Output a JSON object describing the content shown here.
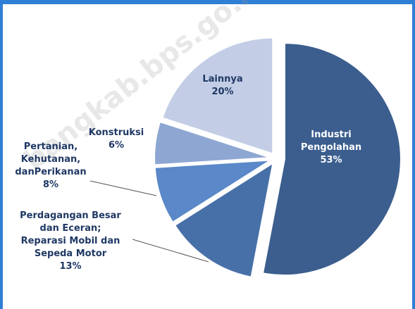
{
  "chart_data": {
    "type": "pie",
    "categories": [
      "Industri Pengolahan",
      "Perdagangan Besar dan Eceran; Reparasi Mobil dan Sepeda Motor",
      "Pertanian, Kehutanan, danPerikanan",
      "Konstruksi",
      "Lainnya"
    ],
    "values": [
      53,
      13,
      8,
      6,
      20
    ],
    "value_labels": [
      "53%",
      "13%",
      "8%",
      "6%",
      "20%"
    ],
    "colors": [
      "#3b5e8e",
      "#4870a8",
      "#5a88c8",
      "#8ea7d2",
      "#c3cee6"
    ],
    "watermark": "bangkab.bps.go.id"
  }
}
